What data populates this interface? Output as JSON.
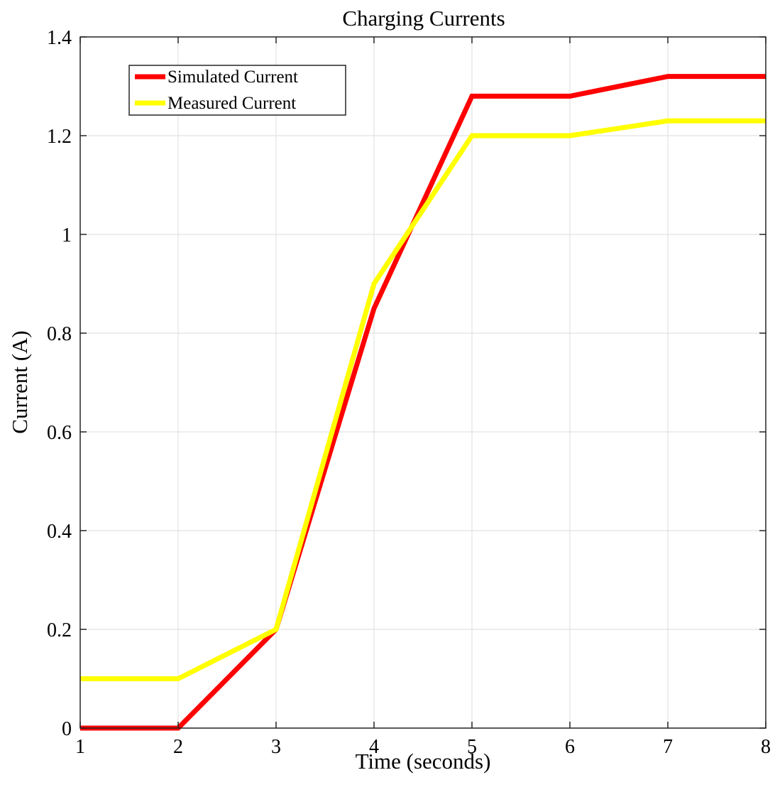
{
  "chart_data": {
    "type": "line",
    "title": "Charging Currents",
    "xlabel": "Time (seconds)",
    "ylabel": "Current (A)",
    "x": [
      1,
      2,
      3,
      4,
      5,
      6,
      7,
      8
    ],
    "xlim": [
      1,
      8
    ],
    "ylim": [
      0,
      1.4
    ],
    "xticks": [
      "1",
      "2",
      "3",
      "4",
      "5",
      "6",
      "7",
      "8"
    ],
    "yticks": [
      "0",
      "0.2",
      "0.4",
      "0.6",
      "0.8",
      "1",
      "1.2",
      "1.4"
    ],
    "grid": true,
    "legend_position": "top-left",
    "series": [
      {
        "name": "Simulated Current",
        "color": "#ff0000",
        "values": [
          0,
          0,
          0.2,
          0.85,
          1.28,
          1.28,
          1.32,
          1.32
        ]
      },
      {
        "name": "Measured Current",
        "color": "#ffff00",
        "values": [
          0.1,
          0.1,
          0.2,
          0.9,
          1.2,
          1.2,
          1.23,
          1.23
        ]
      }
    ]
  }
}
